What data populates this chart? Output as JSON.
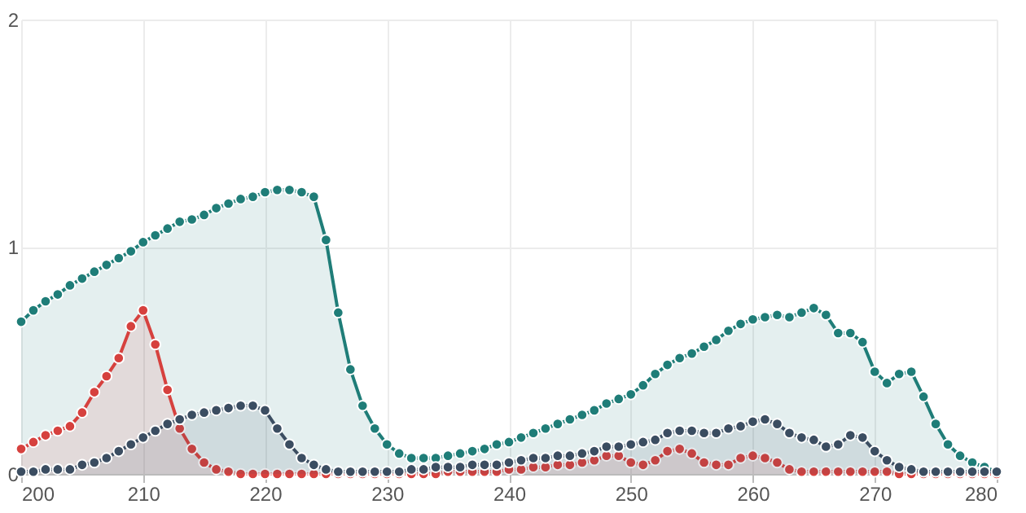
{
  "chart_data": {
    "type": "area",
    "x": [
      200,
      201,
      202,
      203,
      204,
      205,
      206,
      207,
      208,
      209,
      210,
      211,
      212,
      213,
      214,
      215,
      216,
      217,
      218,
      219,
      220,
      221,
      222,
      223,
      224,
      225,
      226,
      227,
      228,
      229,
      230,
      231,
      232,
      233,
      234,
      235,
      236,
      237,
      238,
      239,
      240,
      241,
      242,
      243,
      244,
      245,
      246,
      247,
      248,
      249,
      250,
      251,
      252,
      253,
      254,
      255,
      256,
      257,
      258,
      259,
      260,
      261,
      262,
      263,
      264,
      265,
      266,
      267,
      268,
      269,
      270,
      271,
      272,
      273,
      274,
      275,
      276,
      277,
      278,
      279,
      280
    ],
    "series": [
      {
        "color": "#1f7d78",
        "values": [
          0.67,
          0.72,
          0.76,
          0.79,
          0.83,
          0.86,
          0.89,
          0.92,
          0.95,
          0.98,
          1.02,
          1.05,
          1.08,
          1.11,
          1.12,
          1.14,
          1.17,
          1.19,
          1.21,
          1.22,
          1.24,
          1.25,
          1.25,
          1.24,
          1.22,
          1.03,
          0.71,
          0.46,
          0.3,
          0.2,
          0.13,
          0.09,
          0.07,
          0.07,
          0.07,
          0.08,
          0.09,
          0.1,
          0.11,
          0.13,
          0.14,
          0.16,
          0.18,
          0.2,
          0.22,
          0.24,
          0.26,
          0.28,
          0.31,
          0.33,
          0.35,
          0.39,
          0.44,
          0.48,
          0.51,
          0.53,
          0.56,
          0.59,
          0.63,
          0.66,
          0.68,
          0.69,
          0.7,
          0.69,
          0.71,
          0.73,
          0.7,
          0.62,
          0.62,
          0.58,
          0.45,
          0.4,
          0.44,
          0.45,
          0.34,
          0.22,
          0.13,
          0.08,
          0.05,
          0.03,
          0.01
        ]
      },
      {
        "color": "#d6413e",
        "values": [
          0.11,
          0.14,
          0.17,
          0.19,
          0.21,
          0.27,
          0.36,
          0.43,
          0.51,
          0.65,
          0.72,
          0.57,
          0.37,
          0.2,
          0.11,
          0.05,
          0.02,
          0.01,
          0,
          0,
          0,
          0,
          0,
          0,
          0,
          0,
          0,
          0,
          0,
          0,
          0,
          0,
          0,
          0,
          0,
          0.01,
          0.01,
          0.01,
          0.01,
          0.01,
          0.02,
          0.02,
          0.03,
          0.03,
          0.04,
          0.04,
          0.05,
          0.06,
          0.08,
          0.08,
          0.05,
          0.04,
          0.06,
          0.1,
          0.11,
          0.09,
          0.05,
          0.04,
          0.04,
          0.07,
          0.08,
          0.07,
          0.05,
          0.02,
          0.01,
          0.01,
          0.01,
          0.01,
          0.01,
          0.01,
          0.01,
          0.01,
          0,
          0,
          0,
          0,
          0,
          0,
          0,
          0,
          0
        ]
      },
      {
        "color": "#3b4d61",
        "values": [
          0.01,
          0.01,
          0.02,
          0.02,
          0.02,
          0.04,
          0.05,
          0.07,
          0.1,
          0.13,
          0.16,
          0.19,
          0.22,
          0.24,
          0.26,
          0.27,
          0.28,
          0.29,
          0.3,
          0.3,
          0.28,
          0.2,
          0.13,
          0.07,
          0.04,
          0.02,
          0.01,
          0.01,
          0.01,
          0.01,
          0.01,
          0.01,
          0.02,
          0.02,
          0.03,
          0.03,
          0.03,
          0.04,
          0.04,
          0.04,
          0.05,
          0.06,
          0.07,
          0.07,
          0.08,
          0.08,
          0.09,
          0.1,
          0.12,
          0.12,
          0.13,
          0.14,
          0.15,
          0.18,
          0.19,
          0.19,
          0.18,
          0.18,
          0.2,
          0.21,
          0.23,
          0.24,
          0.22,
          0.18,
          0.16,
          0.15,
          0.12,
          0.13,
          0.17,
          0.16,
          0.1,
          0.06,
          0.03,
          0.02,
          0.01,
          0.01,
          0.01,
          0.01,
          0.01,
          0.01,
          0.01
        ]
      }
    ],
    "xlim": [
      200,
      280
    ],
    "xticks": [
      200,
      210,
      220,
      230,
      240,
      250,
      260,
      270,
      280
    ],
    "ylim": [
      0,
      2
    ],
    "yticks": [
      0,
      1,
      2
    ],
    "grid": true,
    "marker": "circle",
    "line_style": "solid"
  }
}
